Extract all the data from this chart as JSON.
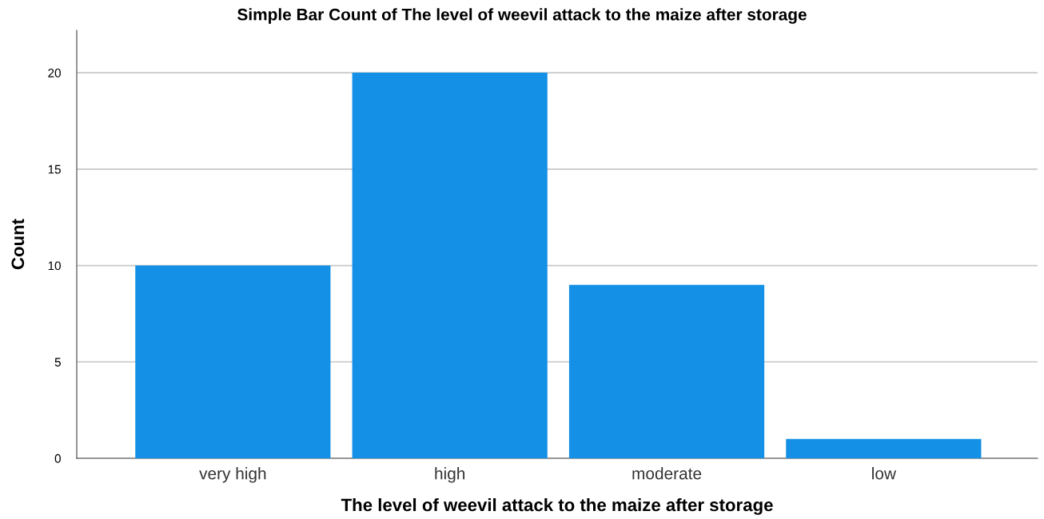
{
  "chart_data": {
    "type": "bar",
    "title": "Simple Bar Count of The level of weevil attack to the maize after storage",
    "xlabel": "The level of weevil attack to the maize after storage",
    "ylabel": "Count",
    "categories": [
      "very high",
      "high",
      "moderate",
      "low"
    ],
    "values": [
      10,
      20,
      9,
      1
    ],
    "color": "#1491e6",
    "ylim": [
      0,
      22.2
    ],
    "yticks": [
      0,
      5,
      10,
      15,
      20
    ],
    "grid": "y"
  }
}
